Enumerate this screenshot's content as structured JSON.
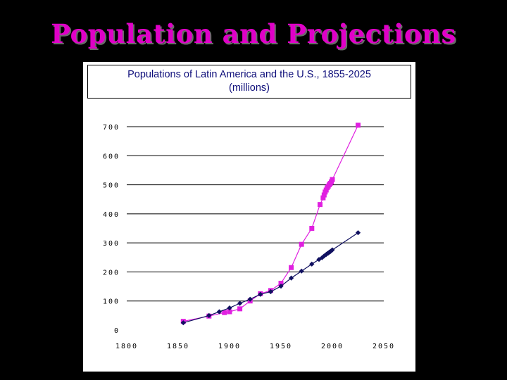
{
  "slide": {
    "title": "Population and Projections"
  },
  "colors": {
    "background": "#000000",
    "title": "#e000c8",
    "latin_america": "#e020e0",
    "us": "#101060",
    "grid": "#000000",
    "axis_text": "#000000",
    "chart_title": "#0e0e7a"
  },
  "chart_data": {
    "type": "line",
    "title": "Populations of Latin America and the U.S., 1855-2025",
    "subtitle": "(millions)",
    "xlabel": "",
    "ylabel": "",
    "xlim": [
      1800,
      2050
    ],
    "ylim": [
      0,
      700
    ],
    "x_ticks": [
      "1800",
      "1850",
      "1900",
      "1950",
      "2000",
      "2050"
    ],
    "y_ticks": [
      "0",
      "100",
      "200",
      "300",
      "400",
      "500",
      "600",
      "700"
    ],
    "grid": "horizontal",
    "legend": "none",
    "series": [
      {
        "key": "latin_america",
        "marker": "square",
        "x": [
          1855,
          1880,
          1895,
          1900,
          1910,
          1920,
          1930,
          1940,
          1950,
          1960,
          1970,
          1980,
          1988,
          1991,
          1992,
          1993,
          1994,
          1995,
          1996,
          1997,
          1998,
          1999,
          2000,
          2025
        ],
        "y": [
          30,
          48,
          60,
          63,
          73,
          100,
          125,
          136,
          161,
          215,
          295,
          350,
          432,
          455,
          465,
          475,
          482,
          490,
          495,
          500,
          505,
          510,
          518,
          705
        ]
      },
      {
        "key": "us",
        "marker": "diamond",
        "x": [
          1855,
          1880,
          1890,
          1900,
          1910,
          1920,
          1930,
          1940,
          1950,
          1960,
          1970,
          1980,
          1987,
          1990,
          1992,
          1994,
          1995,
          1996,
          1997,
          1998,
          1999,
          2000,
          2025
        ],
        "y": [
          25,
          50,
          63,
          76,
          92,
          106,
          123,
          132,
          151,
          179,
          203,
          227,
          243,
          249,
          255,
          260,
          263,
          265,
          268,
          270,
          273,
          276,
          335
        ]
      }
    ]
  }
}
